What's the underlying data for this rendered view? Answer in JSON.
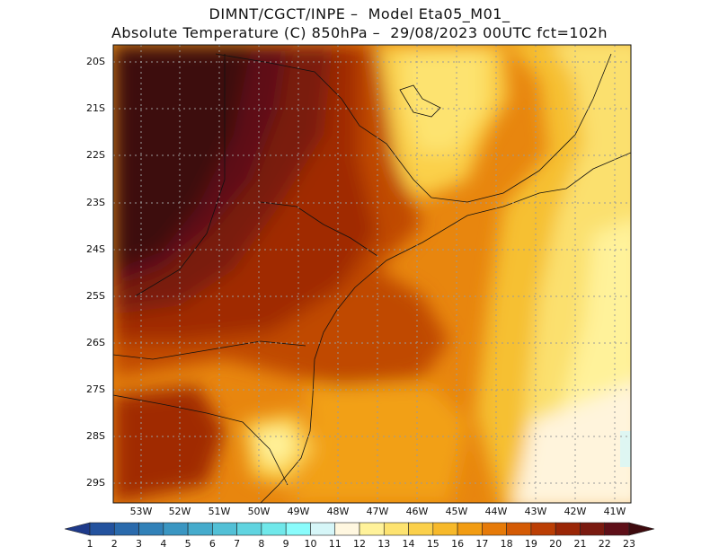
{
  "title": {
    "line1": "DIMNT/CGCT/INPE –  Model Eta05_M01_",
    "line2": "Absolute Temperature (C) 850hPa –  29/08/2023 00UTC fct=102h"
  },
  "map": {
    "lon_range": [
      -54,
      -40.5
    ],
    "lat_range": [
      -29.5,
      -19.8
    ],
    "lat_labels": [
      "20S",
      "21S",
      "22S",
      "23S",
      "24S",
      "25S",
      "26S",
      "27S",
      "28S",
      "29S"
    ],
    "lon_labels": [
      "53W",
      "52W",
      "51W",
      "50W",
      "49W",
      "48W",
      "47W",
      "46W",
      "45W",
      "44W",
      "43W",
      "42W",
      "41W"
    ]
  },
  "colorbar": {
    "labels": [
      "1",
      "2",
      "3",
      "4",
      "5",
      "6",
      "7",
      "8",
      "9",
      "10",
      "11",
      "12",
      "13",
      "14",
      "15",
      "16",
      "17",
      "18",
      "19",
      "20",
      "21",
      "22",
      "23"
    ],
    "colors": [
      "#1e3a8a",
      "#23529e",
      "#2a6aac",
      "#3181b8",
      "#3a96c2",
      "#45abcc",
      "#52c0d6",
      "#60d4e0",
      "#70e8ea",
      "#8afcfc",
      "#d6f6f8",
      "#fff7e0",
      "#fff29a",
      "#fde370",
      "#fbd04a",
      "#f7b92a",
      "#f29c12",
      "#e67a08",
      "#d45a04",
      "#bb3e04",
      "#9a2606",
      "#7a1a10",
      "#5e0f18",
      "#3e0a0e"
    ]
  }
}
